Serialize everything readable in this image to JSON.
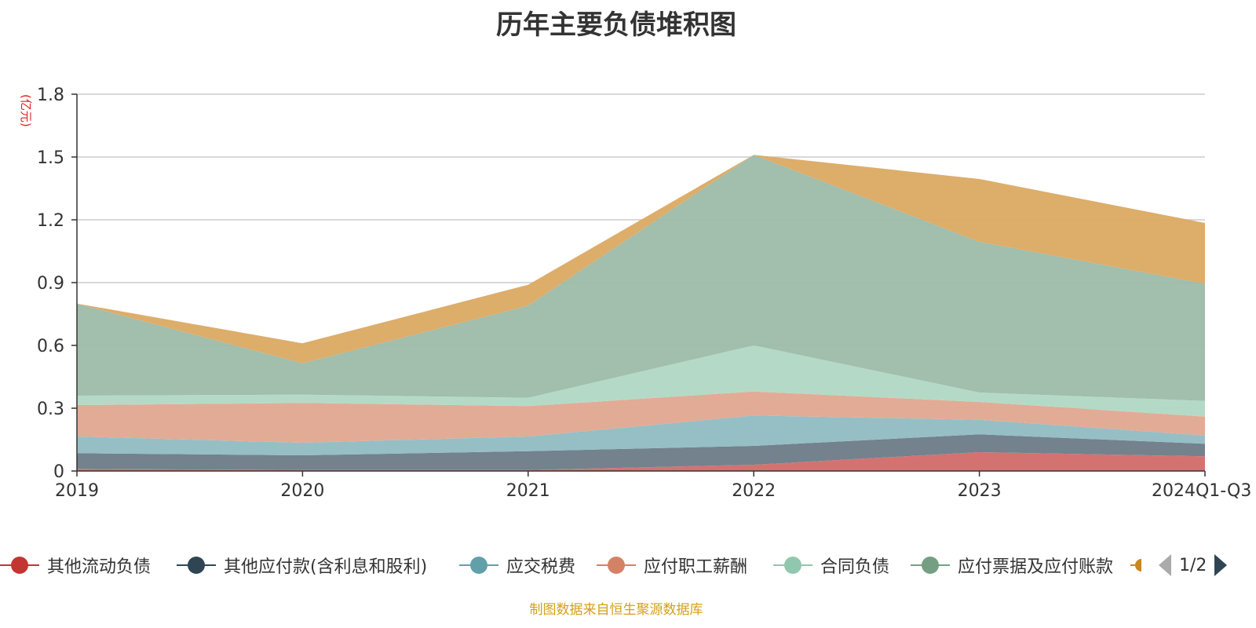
{
  "title": "历年主要负债堆积图",
  "unit": "(亿元)",
  "source": "制图数据来自恒生聚源数据库",
  "pager": "1/2",
  "chart_data": {
    "type": "area",
    "stacked": true,
    "x": [
      "2019",
      "2020",
      "2021",
      "2022",
      "2023",
      "2024Q1-Q3"
    ],
    "ylim": [
      0,
      1.8
    ],
    "yticks": [
      "0",
      "0.3",
      "0.6",
      "0.9",
      "1.2",
      "1.5",
      "1.8"
    ],
    "ytick_values": [
      0,
      0.3,
      0.6,
      0.9,
      1.2,
      1.5,
      1.8
    ],
    "grid": true,
    "legend_position": "bottom",
    "series": [
      {
        "name": "其他流动负债",
        "color": "#d26a6a",
        "legend_color": "#c23531",
        "values": [
          0.01,
          0.005,
          0.005,
          0.03,
          0.09,
          0.07
        ]
      },
      {
        "name": "其他应付款(含利息和股利)",
        "color": "#6b7b87",
        "legend_color": "#2f4554",
        "values": [
          0.075,
          0.07,
          0.09,
          0.09,
          0.085,
          0.06
        ]
      },
      {
        "name": "应交税费",
        "color": "#8fbcc2",
        "legend_color": "#61a0a8",
        "values": [
          0.08,
          0.06,
          0.07,
          0.145,
          0.07,
          0.04
        ]
      },
      {
        "name": "应付职工薪酬",
        "color": "#e0a690",
        "legend_color": "#d48265",
        "values": [
          0.15,
          0.19,
          0.145,
          0.115,
          0.085,
          0.09
        ]
      },
      {
        "name": "合同负债",
        "color": "#b0d8c4",
        "legend_color": "#91c7ae",
        "values": [
          0.045,
          0.04,
          0.04,
          0.22,
          0.045,
          0.075
        ]
      },
      {
        "name": "应付票据及应付账款",
        "color": "#9dbba8",
        "legend_color": "#749f83",
        "values": [
          0.44,
          0.15,
          0.44,
          0.91,
          0.72,
          0.56
        ]
      },
      {
        "name": "",
        "color": "#dba962",
        "legend_color": "#ca8622",
        "values": [
          0.0,
          0.095,
          0.1,
          0.0,
          0.3,
          0.29
        ]
      }
    ]
  }
}
